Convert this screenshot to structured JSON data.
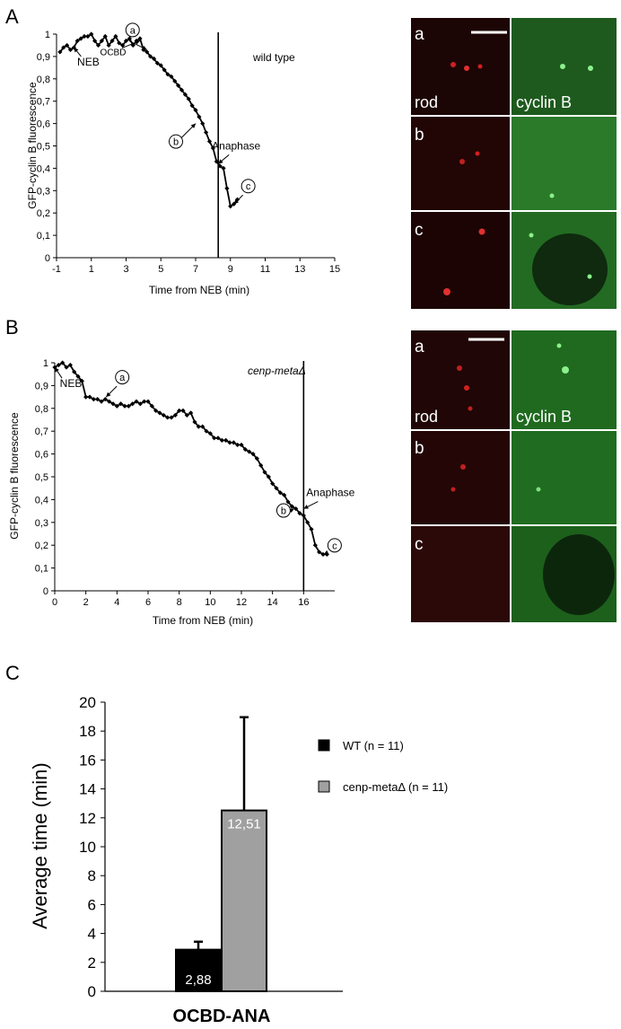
{
  "panels": {
    "A": {
      "letter": "A",
      "chart_data": {
        "type": "line",
        "xlabel": "Time from NEB (min)",
        "ylabel": "GFP-cyclin B fluorescence",
        "xlim": [
          -1,
          15
        ],
        "ylim": [
          0,
          1
        ],
        "x_ticks": [
          "-1",
          "1",
          "3",
          "5",
          "7",
          "9",
          "11",
          "13",
          "15"
        ],
        "y_ticks": [
          "0",
          "0,1",
          "0,2",
          "0,3",
          "0,4",
          "0,5",
          "0,6",
          "0,7",
          "0,8",
          "0,9",
          "1"
        ],
        "condition_label": "wild type",
        "anaphase_time": 8.3,
        "series": [
          {
            "x": [
              -0.8,
              -0.6,
              -0.4,
              -0.2,
              0,
              0.2,
              0.4,
              0.6,
              0.8,
              1,
              1.2,
              1.4,
              1.6,
              1.8,
              2,
              2.2,
              2.4,
              2.6,
              2.8,
              3,
              3.2,
              3.4,
              3.6,
              3.8,
              4,
              4.2,
              4.4,
              4.6,
              4.8,
              5,
              5.2,
              5.4,
              5.6,
              5.8,
              6,
              6.2,
              6.4,
              6.6,
              6.8,
              7,
              7.2,
              7.4,
              7.6,
              7.8,
              8,
              8.2,
              8.4,
              8.6,
              8.8,
              9,
              9.2,
              9.4
            ],
            "y": [
              0.92,
              0.94,
              0.95,
              0.93,
              0.94,
              0.97,
              0.98,
              0.99,
              0.99,
              1.0,
              0.97,
              0.95,
              0.97,
              0.99,
              0.95,
              0.97,
              0.99,
              0.96,
              0.95,
              0.97,
              0.98,
              0.95,
              0.97,
              0.98,
              0.93,
              0.92,
              0.9,
              0.89,
              0.87,
              0.86,
              0.84,
              0.82,
              0.81,
              0.79,
              0.77,
              0.75,
              0.73,
              0.71,
              0.68,
              0.66,
              0.63,
              0.6,
              0.56,
              0.52,
              0.49,
              0.43,
              0.41,
              0.4,
              0.31,
              0.23,
              0.24,
              0.26
            ]
          }
        ],
        "annotations": [
          {
            "text": "NEB",
            "x": 0,
            "y": 0.94
          },
          {
            "text": "OCBD",
            "x": 3.8,
            "y": 0.97
          },
          {
            "text": "a",
            "x": 4.2,
            "y": 0.93,
            "circled": true
          },
          {
            "text": "b",
            "x": 7,
            "y": 0.6,
            "circled": true
          },
          {
            "text": "Anaphase",
            "x": 8.3,
            "y": 0.42
          },
          {
            "text": "c",
            "x": 9.2,
            "y": 0.24,
            "circled": true
          }
        ]
      },
      "micrographs": {
        "rows": [
          "a",
          "b",
          "c"
        ],
        "left_label": "rod",
        "right_label": "cyclin B"
      }
    },
    "B": {
      "letter": "B",
      "chart_data": {
        "type": "line",
        "xlabel": "Time from NEB (min)",
        "ylabel": "GFP-cyclin B fluorescence",
        "xlim": [
          0,
          18
        ],
        "ylim": [
          0,
          1
        ],
        "x_ticks": [
          "0",
          "2",
          "4",
          "6",
          "8",
          "10",
          "12",
          "14",
          "16"
        ],
        "y_ticks": [
          "0",
          "0,1",
          "0,2",
          "0,3",
          "0,4",
          "0,5",
          "0,6",
          "0,7",
          "0,8",
          "0,9",
          "1"
        ],
        "condition_label": "cenp-metaΔ",
        "anaphase_time": 16,
        "series": [
          {
            "x": [
              0,
              0.25,
              0.5,
              0.75,
              1,
              1.25,
              1.5,
              1.75,
              2,
              2.25,
              2.5,
              2.75,
              3,
              3.25,
              3.5,
              3.75,
              4,
              4.25,
              4.5,
              4.75,
              5,
              5.25,
              5.5,
              5.75,
              6,
              6.25,
              6.5,
              6.75,
              7,
              7.25,
              7.5,
              7.75,
              8,
              8.25,
              8.5,
              8.75,
              9,
              9.25,
              9.5,
              9.75,
              10,
              10.25,
              10.5,
              10.75,
              11,
              11.25,
              11.5,
              11.75,
              12,
              12.25,
              12.5,
              12.75,
              13,
              13.25,
              13.5,
              13.75,
              14,
              14.25,
              14.5,
              14.75,
              15,
              15.25,
              15.5,
              15.75,
              16,
              16.25,
              16.5,
              16.75,
              17,
              17.25,
              17.5
            ],
            "y": [
              0.98,
              0.99,
              1.0,
              0.98,
              0.99,
              0.96,
              0.94,
              0.92,
              0.85,
              0.85,
              0.84,
              0.84,
              0.83,
              0.84,
              0.83,
              0.82,
              0.81,
              0.82,
              0.81,
              0.81,
              0.82,
              0.83,
              0.82,
              0.83,
              0.83,
              0.81,
              0.79,
              0.78,
              0.77,
              0.76,
              0.76,
              0.77,
              0.79,
              0.79,
              0.77,
              0.78,
              0.74,
              0.72,
              0.72,
              0.7,
              0.69,
              0.67,
              0.67,
              0.66,
              0.66,
              0.65,
              0.65,
              0.64,
              0.64,
              0.62,
              0.61,
              0.6,
              0.58,
              0.55,
              0.52,
              0.5,
              0.47,
              0.45,
              0.43,
              0.42,
              0.39,
              0.37,
              0.36,
              0.34,
              0.33,
              0.3,
              0.27,
              0.2,
              0.17,
              0.16,
              0.16
            ]
          }
        ],
        "annotations": [
          {
            "text": "NEB",
            "x": 0,
            "y": 0.98
          },
          {
            "text": "a",
            "x": 3.3,
            "y": 0.85,
            "circled": true
          },
          {
            "text": "Anaphase",
            "x": 16,
            "y": 0.36
          },
          {
            "text": "b",
            "x": 15.4,
            "y": 0.36,
            "circled": true
          },
          {
            "text": "c",
            "x": 17.3,
            "y": 0.16,
            "circled": true
          }
        ]
      },
      "micrographs": {
        "rows": [
          "a",
          "b",
          "c"
        ],
        "left_label": "rod",
        "right_label": "cyclin B"
      }
    },
    "C": {
      "letter": "C",
      "chart_data": {
        "type": "bar",
        "categories": [
          "OCBD-ANA"
        ],
        "ylabel": "Average time (min)",
        "ylim": [
          0,
          20
        ],
        "y_ticks": [
          "0",
          "2",
          "4",
          "6",
          "8",
          "10",
          "12",
          "14",
          "16",
          "18",
          "20"
        ],
        "series": [
          {
            "name": "WT",
            "legend": "WT (n = 11)",
            "values": [
              2.88
            ],
            "error": [
              0.55
            ],
            "value_label": "2,88",
            "color": "#000000"
          },
          {
            "name": "cenp-metaΔ",
            "legend": "cenp-metaΔ (n = 11)",
            "values": [
              12.51
            ],
            "error": [
              6.45
            ],
            "value_label": "12,51",
            "color": "#a0a0a0"
          }
        ]
      }
    }
  }
}
